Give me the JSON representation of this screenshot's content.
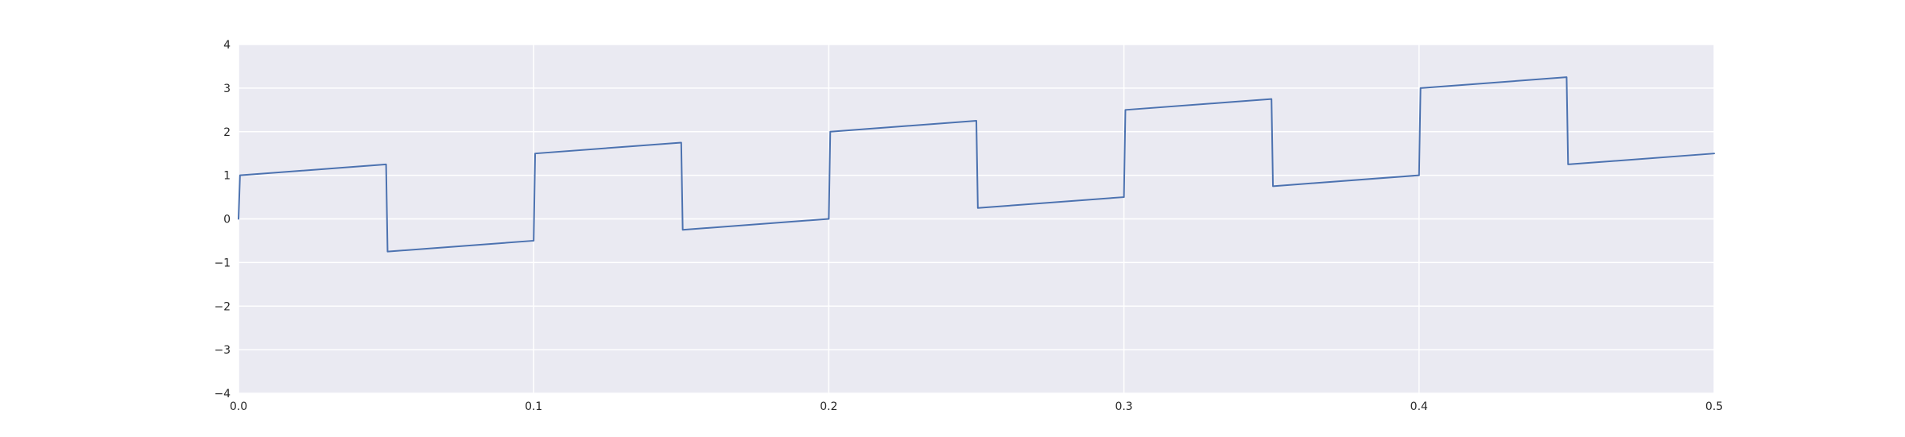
{
  "chart_data": {
    "type": "line",
    "title": "",
    "xlabel": "",
    "ylabel": "",
    "xlim": [
      0.0,
      0.5
    ],
    "ylim": [
      -4,
      4
    ],
    "x_ticks": [
      0.0,
      0.1,
      0.2,
      0.3,
      0.4,
      0.5
    ],
    "x_tick_labels": [
      "0.0",
      "0.1",
      "0.2",
      "0.3",
      "0.4",
      "0.5"
    ],
    "y_ticks": [
      -4,
      -3,
      -2,
      -1,
      0,
      1,
      2,
      3,
      4
    ],
    "y_tick_labels": [
      "−4",
      "−3",
      "−2",
      "−1",
      "0",
      "1",
      "2",
      "3",
      "4"
    ],
    "grid": true,
    "colors": {
      "background": "#eaeaf2",
      "grid": "#ffffff",
      "line": "#4c72b0"
    },
    "series": [
      {
        "x": [
          0.0,
          0.0005,
          0.05,
          0.0505,
          0.1,
          0.1005,
          0.15,
          0.1505,
          0.2,
          0.2005,
          0.25,
          0.2505,
          0.3,
          0.3005,
          0.35,
          0.3505,
          0.4,
          0.4005,
          0.45,
          0.4505,
          0.5
        ],
        "y": [
          0.0,
          1.0,
          1.25,
          -0.75,
          -0.5,
          1.5,
          1.75,
          -0.25,
          0.0,
          2.0,
          2.25,
          0.25,
          0.5,
          2.5,
          2.75,
          0.75,
          1.0,
          3.0,
          3.25,
          1.25,
          1.5
        ]
      }
    ]
  }
}
